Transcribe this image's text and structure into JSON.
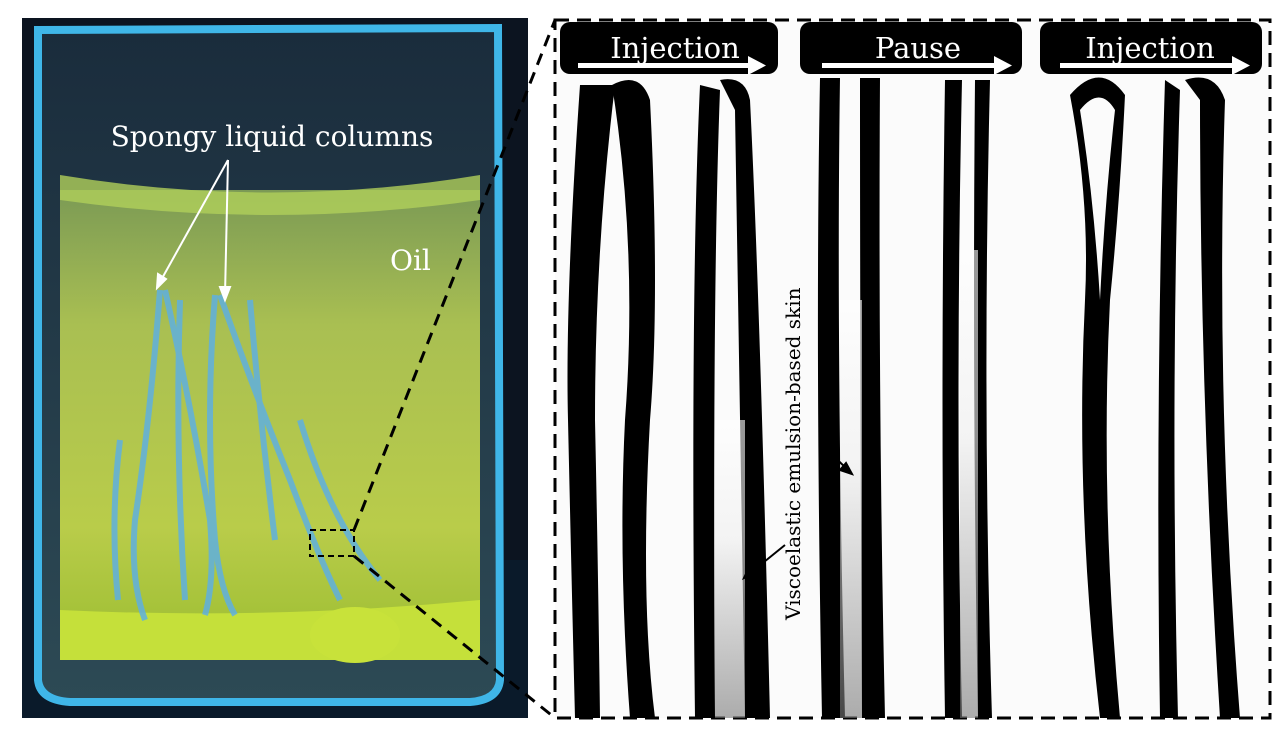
{
  "left_photo": {
    "label_columns": "Spongy liquid columns",
    "label_oil": "Oil"
  },
  "right_panel": {
    "phases": [
      "Injection",
      "Pause",
      "Injection"
    ],
    "label_skin": "Viscoelastic emulsion-based skin"
  },
  "colors": {
    "glass_glow": "#3fb6e8",
    "oil": "#b7c948",
    "background": "#0c1420",
    "tube": "#000000"
  }
}
